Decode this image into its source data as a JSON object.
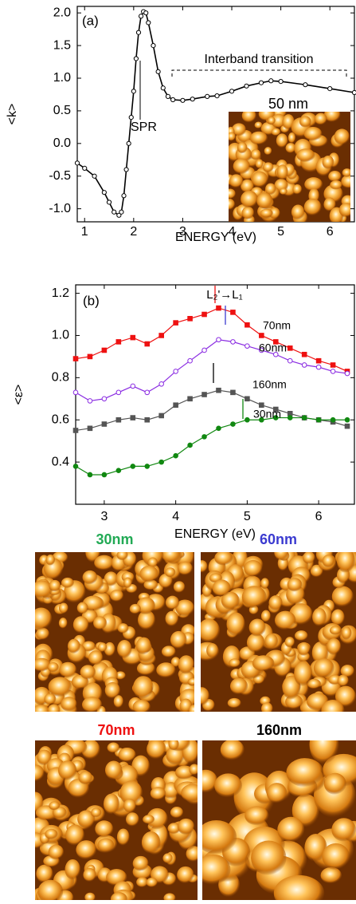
{
  "chart_data": [
    {
      "type": "line",
      "panel_label": "(a)",
      "ylabel": "<k>",
      "xlabel": "ENERGY (eV)",
      "annotations": [
        "SPR",
        "Interband transition",
        "50 nm"
      ],
      "xlim": [
        0.85,
        6.5
      ],
      "ylim": [
        -1.2,
        2.1
      ],
      "xticks": [
        1,
        2,
        3,
        4,
        5,
        6
      ],
      "yticks": [
        {
          "value": 2,
          "label": "2.0"
        },
        {
          "value": 1.5,
          "label": "1.5"
        },
        {
          "value": 1,
          "label": "1.0"
        },
        {
          "value": 0.5,
          "label": "0.5"
        },
        {
          "value": 0,
          "label": "0.0"
        },
        {
          "value": -0.5,
          "label": "-0.5"
        },
        {
          "value": -1,
          "label": "-1.0"
        }
      ],
      "x": [
        0.85,
        1.0,
        1.2,
        1.4,
        1.5,
        1.6,
        1.7,
        1.75,
        1.8,
        1.85,
        1.9,
        1.95,
        2.0,
        2.05,
        2.1,
        2.15,
        2.2,
        2.25,
        2.3,
        2.4,
        2.5,
        2.6,
        2.7,
        2.8,
        3.0,
        3.2,
        3.5,
        3.7,
        4.0,
        4.3,
        4.6,
        4.8,
        5.0,
        5.5,
        6.0,
        6.5
      ],
      "series": [
        {
          "color": "#000000",
          "marker": "circle",
          "filled": false,
          "values": [
            -0.3,
            -0.38,
            -0.5,
            -0.75,
            -0.9,
            -1.05,
            -1.1,
            -1.05,
            -0.8,
            -0.4,
            0.0,
            0.4,
            0.8,
            1.3,
            1.7,
            1.95,
            2.02,
            2.0,
            1.85,
            1.5,
            1.1,
            0.85,
            0.72,
            0.67,
            0.66,
            0.68,
            0.72,
            0.73,
            0.8,
            0.88,
            0.93,
            0.96,
            0.95,
            0.9,
            0.84,
            0.78
          ]
        }
      ]
    },
    {
      "type": "line",
      "panel_label": "(b)",
      "ylabel": "<ε>",
      "xlabel": "ENERGY (eV)",
      "annotations": [
        "L₂'→L₁"
      ],
      "xlim": [
        2.6,
        6.5
      ],
      "ylim": [
        0.2,
        1.24
      ],
      "xticks": [
        3,
        4,
        5,
        6
      ],
      "yticks": [
        {
          "value": 1.2,
          "label": "1.2"
        },
        {
          "value": 1,
          "label": "1.0"
        },
        {
          "value": 0.8,
          "label": "0.8"
        },
        {
          "value": 0.6,
          "label": "0.6"
        },
        {
          "value": 0.4,
          "label": "0.4"
        }
      ],
      "x": [
        2.6,
        2.8,
        3.0,
        3.2,
        3.4,
        3.6,
        3.8,
        4.0,
        4.2,
        4.4,
        4.6,
        4.8,
        5.0,
        5.2,
        5.4,
        5.6,
        5.8,
        6.0,
        6.2,
        6.4
      ],
      "series": [
        {
          "name": "70nm",
          "color": "#ee1111",
          "marker": "square",
          "filled": true,
          "values": [
            0.89,
            0.9,
            0.93,
            0.97,
            0.99,
            0.96,
            1.0,
            1.06,
            1.08,
            1.1,
            1.13,
            1.11,
            1.05,
            1.0,
            0.97,
            0.94,
            0.91,
            0.88,
            0.86,
            0.83
          ]
        },
        {
          "name": "60nm",
          "color": "#8a2be2",
          "marker": "circle",
          "filled": false,
          "values": [
            0.73,
            0.69,
            0.7,
            0.73,
            0.76,
            0.73,
            0.77,
            0.83,
            0.88,
            0.93,
            0.98,
            0.97,
            0.95,
            0.93,
            0.91,
            0.88,
            0.86,
            0.85,
            0.83,
            0.82
          ]
        },
        {
          "name": "160nm",
          "color": "#555555",
          "marker": "square",
          "filled": true,
          "values": [
            0.55,
            0.56,
            0.58,
            0.6,
            0.61,
            0.6,
            0.62,
            0.67,
            0.7,
            0.72,
            0.74,
            0.73,
            0.7,
            0.67,
            0.65,
            0.63,
            0.61,
            0.6,
            0.59,
            0.57
          ]
        },
        {
          "name": "30nm",
          "color": "#118811",
          "marker": "circle",
          "filled": true,
          "values": [
            0.38,
            0.34,
            0.34,
            0.36,
            0.38,
            0.38,
            0.4,
            0.43,
            0.48,
            0.52,
            0.56,
            0.58,
            0.6,
            0.6,
            0.61,
            0.61,
            0.61,
            0.6,
            0.6,
            0.6
          ]
        }
      ]
    }
  ],
  "images": [
    {
      "label": "30nm",
      "color": "#22aa55"
    },
    {
      "label": "60nm",
      "color": "#3b3bd0"
    },
    {
      "label": "70nm",
      "color": "#ee1111"
    },
    {
      "label": "160nm",
      "color": "#000000"
    }
  ]
}
